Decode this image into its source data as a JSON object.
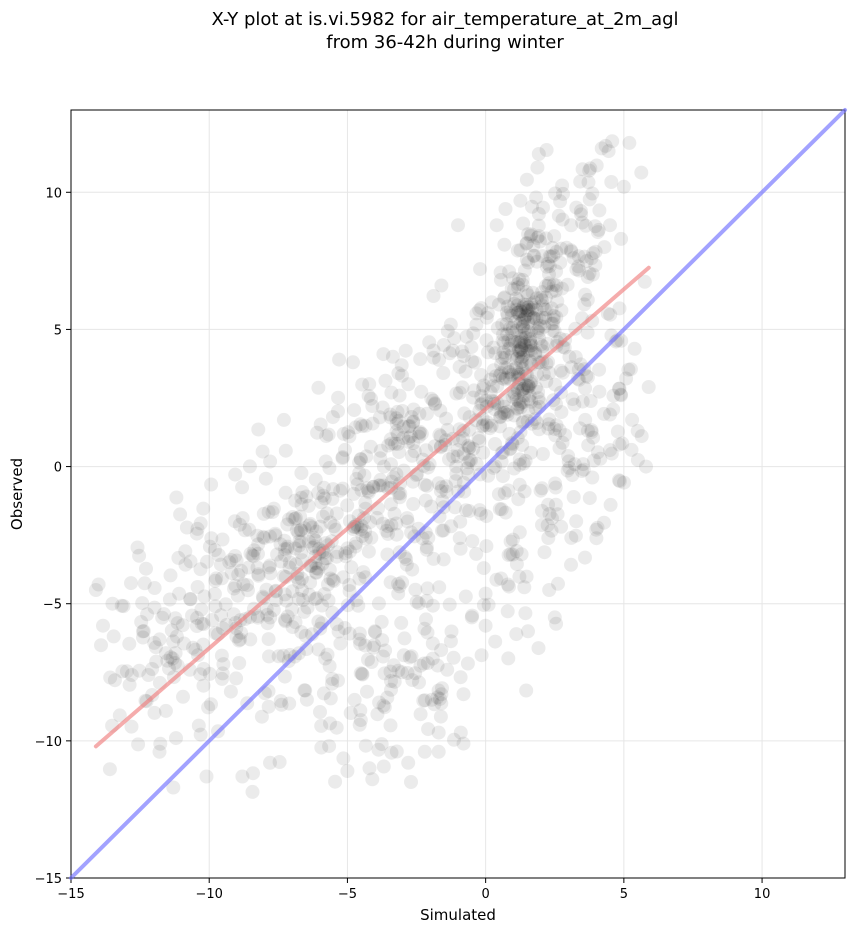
{
  "chart_data": {
    "type": "scatter",
    "title": [
      "X-Y plot at is.vi.5982 for air_temperature_at_2m_agl",
      "from 36-42h during winter"
    ],
    "xlabel": "Simulated",
    "ylabel": "Observed",
    "xlim": [
      -15,
      13
    ],
    "ylim": [
      -15,
      13
    ],
    "xticks": [
      -15,
      -10,
      -5,
      0,
      5,
      10
    ],
    "yticks": [
      -15,
      -10,
      -5,
      0,
      5,
      10
    ],
    "tick_labels_x": [
      "−15",
      "−10",
      "−5",
      "0",
      "5",
      "10"
    ],
    "tick_labels_y": [
      "−15",
      "−10",
      "−5",
      "0",
      "5",
      "10"
    ],
    "grid": true,
    "point_color": "#000000",
    "point_alpha": 0.08,
    "lines": [
      {
        "role": "regression",
        "color": "#f08080",
        "x": [
          -14.1,
          5.9
        ],
        "y": [
          -10.2,
          7.25
        ]
      },
      {
        "role": "one-to-one",
        "color": "#7070ff",
        "x": [
          -15,
          13
        ],
        "y": [
          -15,
          13
        ]
      }
    ],
    "clusters": [
      {
        "cx": -10.5,
        "cy": -5.5,
        "sx": 2.2,
        "sy": 2.2,
        "n": 170
      },
      {
        "cx": -6.5,
        "cy": -3.5,
        "sx": 1.8,
        "sy": 2.4,
        "n": 200
      },
      {
        "cx": -4.0,
        "cy": -2.0,
        "sx": 1.8,
        "sy": 2.8,
        "n": 160
      },
      {
        "cx": -1.5,
        "cy": 1.0,
        "sx": 1.8,
        "sy": 2.0,
        "n": 160
      },
      {
        "cx": 1.3,
        "cy": 4.3,
        "sx": 0.7,
        "sy": 1.6,
        "n": 230
      },
      {
        "cx": 2.5,
        "cy": 7.5,
        "sx": 1.3,
        "sy": 2.0,
        "n": 120
      },
      {
        "cx": 2.5,
        "cy": 0.5,
        "sx": 1.8,
        "sy": 2.0,
        "n": 110
      },
      {
        "cx": -3.0,
        "cy": -8.0,
        "sx": 2.6,
        "sy": 1.7,
        "n": 110
      },
      {
        "cx": 3.5,
        "cy": 2.5,
        "sx": 1.4,
        "sy": 2.8,
        "n": 60
      }
    ],
    "points": [
      [
        -14.1,
        -4.5
      ],
      [
        -14.0,
        -4.3
      ],
      [
        -13.5,
        -5.0
      ],
      [
        -12.8,
        -7.6
      ],
      [
        -12.2,
        -7.6
      ],
      [
        -11.3,
        -11.7
      ],
      [
        -11.8,
        -10.4
      ],
      [
        -11.2,
        -9.9
      ],
      [
        -10.1,
        -11.3
      ],
      [
        -8.8,
        -11.3
      ],
      [
        -7.8,
        -10.8
      ],
      [
        -5.0,
        -11.1
      ],
      [
        -4.2,
        -11.0
      ],
      [
        -4.1,
        -11.4
      ],
      [
        -2.7,
        -11.5
      ],
      [
        -2.8,
        -10.8
      ],
      [
        -2.2,
        -10.4
      ],
      [
        -1.7,
        -10.4
      ],
      [
        -1.7,
        -9.7
      ],
      [
        -0.8,
        -10.1
      ],
      [
        -0.9,
        -9.7
      ],
      [
        -0.8,
        -8.3
      ],
      [
        -1.6,
        -8.3
      ],
      [
        -0.5,
        -5.5
      ],
      [
        0.0,
        -5.8
      ],
      [
        2.3,
        -4.5
      ],
      [
        2.5,
        -5.5
      ],
      [
        1.4,
        -4.4
      ],
      [
        0.8,
        -4.3
      ],
      [
        0.9,
        -3.2
      ],
      [
        1.3,
        -3.2
      ],
      [
        3.1,
        -2.6
      ],
      [
        4.0,
        -2.3
      ],
      [
        5.8,
        0.0
      ],
      [
        5.9,
        2.9
      ],
      [
        5.5,
        1.3
      ],
      [
        5.3,
        1.7
      ],
      [
        4.9,
        2.6
      ],
      [
        4.5,
        1.9
      ],
      [
        4.5,
        0.6
      ],
      [
        3.6,
        1.7
      ],
      [
        -7.3,
        1.7
      ],
      [
        -5.3,
        3.9
      ],
      [
        -4.8,
        3.8
      ],
      [
        -3.7,
        4.1
      ],
      [
        -1.0,
        8.8
      ],
      [
        0.4,
        8.8
      ],
      [
        4.2,
        11.6
      ],
      [
        5.2,
        11.8
      ],
      [
        5.0,
        10.2
      ],
      [
        4.5,
        8.8
      ],
      [
        4.9,
        8.3
      ],
      [
        -0.2,
        7.2
      ],
      [
        -1.6,
        6.6
      ]
    ]
  }
}
